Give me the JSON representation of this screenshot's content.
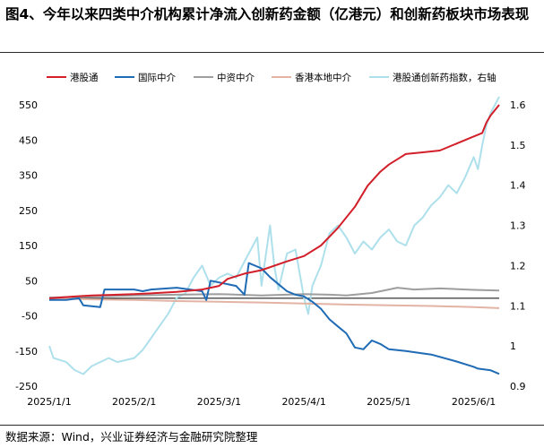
{
  "title": "图4、今年以来四类中介机构累计净流入创新药金额（亿港元）和创新药板块市场表现",
  "source": "数据来源：Wind，兴业证券经济与金融研究院整理",
  "chart_data": {
    "type": "line",
    "x_ticks": [
      "2025/1/1",
      "2025/2/1",
      "2025/3/1",
      "2025/4/1",
      "2025/5/1",
      "2025/6/1"
    ],
    "x_range": [
      0,
      5.3
    ],
    "y_left": {
      "ticks": [
        550,
        450,
        350,
        250,
        150,
        50,
        -50,
        -150,
        -250
      ],
      "range": [
        -250,
        550
      ]
    },
    "y_right": {
      "ticks": [
        "1.6",
        "1.5",
        "1.4",
        "1.3",
        "1.2",
        "1.1",
        "1",
        "0.9"
      ],
      "range": [
        0.9,
        1.6
      ]
    },
    "series": [
      {
        "name": "港股通",
        "axis": "left",
        "color": "#d21f2a",
        "points": [
          [
            0,
            0
          ],
          [
            0.3,
            5
          ],
          [
            0.5,
            8
          ],
          [
            0.8,
            10
          ],
          [
            1,
            12
          ],
          [
            1.2,
            14
          ],
          [
            1.5,
            18
          ],
          [
            1.8,
            25
          ],
          [
            2.0,
            35
          ],
          [
            2.1,
            55
          ],
          [
            2.3,
            70
          ],
          [
            2.5,
            80
          ],
          [
            2.8,
            105
          ],
          [
            3.0,
            120
          ],
          [
            3.2,
            150
          ],
          [
            3.4,
            200
          ],
          [
            3.6,
            260
          ],
          [
            3.75,
            320
          ],
          [
            3.9,
            360
          ],
          [
            4.0,
            380
          ],
          [
            4.1,
            395
          ],
          [
            4.2,
            410
          ],
          [
            4.4,
            415
          ],
          [
            4.6,
            420
          ],
          [
            4.8,
            440
          ],
          [
            5.0,
            460
          ],
          [
            5.1,
            470
          ],
          [
            5.15,
            500
          ],
          [
            5.2,
            520
          ],
          [
            5.3,
            550
          ]
        ]
      },
      {
        "name": "国际中介",
        "axis": "left",
        "color": "#1f6bb5",
        "points": [
          [
            0,
            -5
          ],
          [
            0.2,
            -5
          ],
          [
            0.35,
            0
          ],
          [
            0.4,
            -20
          ],
          [
            0.6,
            -25
          ],
          [
            0.65,
            25
          ],
          [
            1.0,
            25
          ],
          [
            1.1,
            20
          ],
          [
            1.2,
            25
          ],
          [
            1.5,
            30
          ],
          [
            1.8,
            20
          ],
          [
            1.85,
            -5
          ],
          [
            1.9,
            50
          ],
          [
            2.2,
            35
          ],
          [
            2.3,
            10
          ],
          [
            2.35,
            100
          ],
          [
            2.5,
            85
          ],
          [
            2.6,
            60
          ],
          [
            2.7,
            40
          ],
          [
            2.8,
            20
          ],
          [
            2.9,
            10
          ],
          [
            3.0,
            5
          ],
          [
            3.1,
            -10
          ],
          [
            3.2,
            -30
          ],
          [
            3.3,
            -60
          ],
          [
            3.4,
            -80
          ],
          [
            3.5,
            -100
          ],
          [
            3.6,
            -140
          ],
          [
            3.7,
            -145
          ],
          [
            3.8,
            -120
          ],
          [
            3.9,
            -130
          ],
          [
            4.0,
            -145
          ],
          [
            4.2,
            -150
          ],
          [
            4.5,
            -160
          ],
          [
            4.8,
            -180
          ],
          [
            5.0,
            -195
          ],
          [
            5.05,
            -200
          ],
          [
            5.2,
            -205
          ],
          [
            5.3,
            -215
          ]
        ]
      },
      {
        "name": "中资中介",
        "axis": "left",
        "color": "#9e9e9e",
        "points": [
          [
            0,
            2
          ],
          [
            0.5,
            5
          ],
          [
            1,
            8
          ],
          [
            1.5,
            10
          ],
          [
            2,
            12
          ],
          [
            2.5,
            8
          ],
          [
            3,
            12
          ],
          [
            3.3,
            10
          ],
          [
            3.5,
            8
          ],
          [
            3.8,
            15
          ],
          [
            4.0,
            25
          ],
          [
            4.1,
            30
          ],
          [
            4.3,
            25
          ],
          [
            4.6,
            28
          ],
          [
            5.0,
            24
          ],
          [
            5.3,
            22
          ]
        ]
      },
      {
        "name": "香港本地中介",
        "axis": "left",
        "color": "#e3b3a4",
        "points": [
          [
            0,
            0
          ],
          [
            0.5,
            -3
          ],
          [
            1,
            -5
          ],
          [
            1.5,
            -8
          ],
          [
            2,
            -10
          ],
          [
            2.5,
            -12
          ],
          [
            3,
            -15
          ],
          [
            3.5,
            -18
          ],
          [
            4,
            -20
          ],
          [
            4.5,
            -22
          ],
          [
            5,
            -25
          ],
          [
            5.3,
            -28
          ]
        ]
      },
      {
        "name": "港股通创新药指数，右轴",
        "axis": "right",
        "color": "#aee0ec",
        "points": [
          [
            0,
            1.0
          ],
          [
            0.05,
            0.97
          ],
          [
            0.2,
            0.96
          ],
          [
            0.3,
            0.94
          ],
          [
            0.4,
            0.93
          ],
          [
            0.5,
            0.95
          ],
          [
            0.6,
            0.96
          ],
          [
            0.7,
            0.97
          ],
          [
            0.8,
            0.96
          ],
          [
            1.0,
            0.97
          ],
          [
            1.1,
            0.99
          ],
          [
            1.2,
            1.02
          ],
          [
            1.3,
            1.05
          ],
          [
            1.4,
            1.08
          ],
          [
            1.5,
            1.12
          ],
          [
            1.6,
            1.13
          ],
          [
            1.7,
            1.17
          ],
          [
            1.8,
            1.2
          ],
          [
            1.9,
            1.15
          ],
          [
            2.0,
            1.17
          ],
          [
            2.1,
            1.18
          ],
          [
            2.2,
            1.17
          ],
          [
            2.3,
            1.21
          ],
          [
            2.4,
            1.25
          ],
          [
            2.45,
            1.27
          ],
          [
            2.5,
            1.15
          ],
          [
            2.6,
            1.3
          ],
          [
            2.65,
            1.2
          ],
          [
            2.7,
            1.14
          ],
          [
            2.8,
            1.23
          ],
          [
            2.9,
            1.24
          ],
          [
            3.0,
            1.12
          ],
          [
            3.05,
            1.08
          ],
          [
            3.1,
            1.15
          ],
          [
            3.2,
            1.2
          ],
          [
            3.3,
            1.28
          ],
          [
            3.4,
            1.3
          ],
          [
            3.5,
            1.27
          ],
          [
            3.6,
            1.23
          ],
          [
            3.7,
            1.26
          ],
          [
            3.8,
            1.24
          ],
          [
            3.9,
            1.27
          ],
          [
            4.0,
            1.29
          ],
          [
            4.1,
            1.26
          ],
          [
            4.2,
            1.25
          ],
          [
            4.3,
            1.3
          ],
          [
            4.4,
            1.32
          ],
          [
            4.5,
            1.35
          ],
          [
            4.6,
            1.37
          ],
          [
            4.7,
            1.4
          ],
          [
            4.8,
            1.38
          ],
          [
            4.9,
            1.42
          ],
          [
            5.0,
            1.47
          ],
          [
            5.05,
            1.44
          ],
          [
            5.1,
            1.5
          ],
          [
            5.15,
            1.55
          ],
          [
            5.2,
            1.58
          ],
          [
            5.25,
            1.6
          ],
          [
            5.3,
            1.62
          ]
        ]
      }
    ]
  }
}
